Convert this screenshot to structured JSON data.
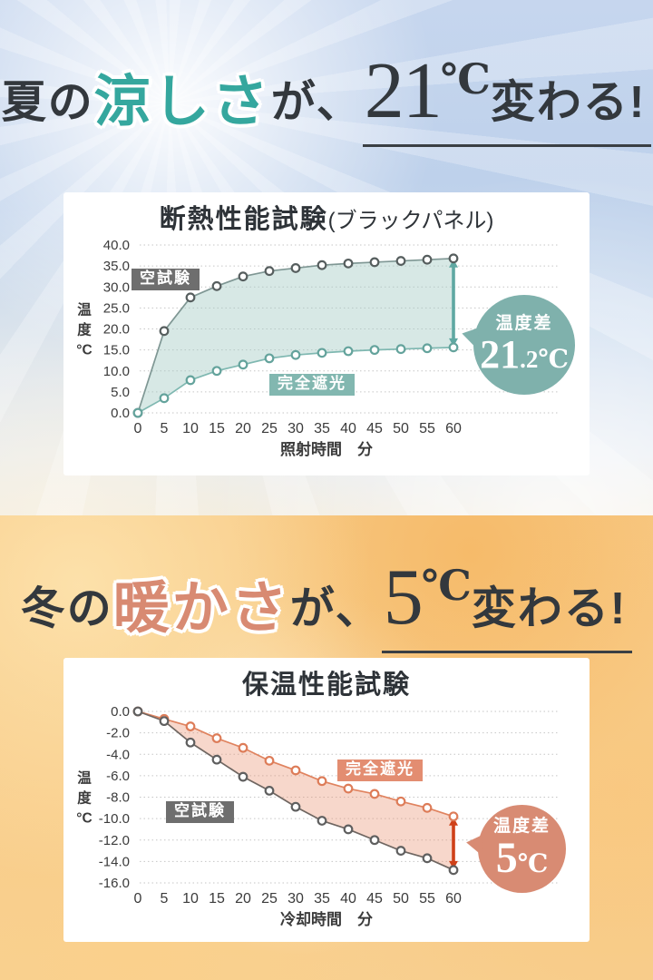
{
  "summer": {
    "heading": {
      "pre": "夏の",
      "accent": "涼しさ",
      "mid": "が、",
      "value": "21",
      "unit": "℃",
      "post": "変わる!"
    }
  },
  "winter": {
    "heading": {
      "pre": "冬の",
      "accent": "暖かさ",
      "mid": "が、",
      "value": "5",
      "unit": "℃",
      "post": "変わる!"
    }
  },
  "chart_data": [
    {
      "type": "area",
      "title": "断熱性能試験",
      "title_suffix": "(ブラックパネル)",
      "ylabel": "温度",
      "yunit": "°C",
      "xlabel": "照射時間　分",
      "x": [
        0,
        5,
        10,
        15,
        20,
        25,
        30,
        35,
        40,
        45,
        50,
        55,
        60
      ],
      "ylim": [
        0,
        40
      ],
      "ytick_step": 5,
      "grid": true,
      "series": [
        {
          "name": "空試験",
          "values": [
            0.0,
            19.5,
            27.5,
            30.2,
            32.5,
            33.8,
            34.5,
            35.2,
            35.6,
            35.9,
            36.2,
            36.5,
            36.8
          ],
          "color": "#7f9794",
          "marker": "#565e5e",
          "label_bg": "#6e6e6e"
        },
        {
          "name": "完全遮光",
          "values": [
            0.0,
            3.5,
            7.8,
            10.0,
            11.5,
            13.0,
            13.8,
            14.3,
            14.7,
            15.0,
            15.2,
            15.4,
            15.6
          ],
          "color": "#7fb8b1",
          "marker": "#64a39c",
          "label_bg": "#82b7b0"
        }
      ],
      "bubble": {
        "label": "温度差",
        "value_big": "21",
        "value_small": ".2",
        "unit": "℃"
      },
      "colors": {
        "fill": "rgba(167,204,197,0.45)",
        "arrow": "#5fa8a2",
        "bubble": "#7fb1ac"
      }
    },
    {
      "type": "area",
      "title": "保温性能試験",
      "title_suffix": "",
      "ylabel": "温度",
      "yunit": "°C",
      "xlabel": "冷却時間　分",
      "x": [
        0,
        5,
        10,
        15,
        20,
        25,
        30,
        35,
        40,
        45,
        50,
        55,
        60
      ],
      "ylim": [
        -16,
        0
      ],
      "ytick_step": 2,
      "grid": true,
      "series": [
        {
          "name": "完全遮光",
          "values": [
            0.0,
            -0.7,
            -1.4,
            -2.5,
            -3.4,
            -4.6,
            -5.5,
            -6.5,
            -7.2,
            -7.7,
            -8.4,
            -9.0,
            -9.8
          ],
          "color": "#e0835f",
          "marker": "#dd7c58",
          "label_bg": "#e38d71"
        },
        {
          "name": "空試験",
          "values": [
            0.0,
            -0.9,
            -2.9,
            -4.5,
            -6.1,
            -7.4,
            -8.9,
            -10.2,
            -11.0,
            -12.0,
            -13.0,
            -13.7,
            -14.8
          ],
          "color": "#6f6661",
          "marker": "#5f5f5f",
          "label_bg": "#6e6e6e"
        }
      ],
      "bubble": {
        "label": "温度差",
        "value_big": "5",
        "value_small": "",
        "unit": "℃"
      },
      "colors": {
        "fill": "rgba(233,151,117,0.38)",
        "arrow": "#cf4018",
        "bubble": "#d88b73"
      }
    }
  ]
}
